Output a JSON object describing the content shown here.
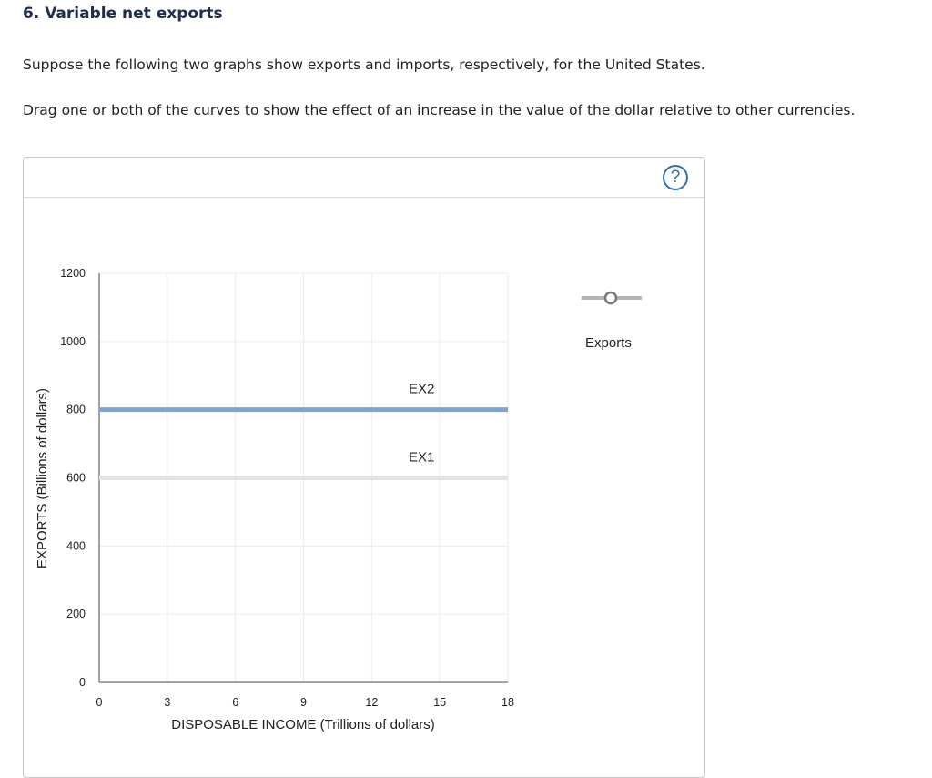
{
  "question": {
    "title": "6. Variable net exports",
    "instruction_1": "Suppose the following two graphs show exports and imports, respectively, for the United States.",
    "instruction_2": "Drag one or both of the curves to show the effect of an increase in the value of the dollar relative to other currencies."
  },
  "panel": {
    "help_label": "?",
    "legend_label": "Exports",
    "legend_icon": "line-with-circle-marker"
  },
  "chart_data": {
    "type": "line",
    "xlabel": "DISPOSABLE INCOME (Trillions of dollars)",
    "ylabel": "EXPORTS (Billions of dollars)",
    "xlim": [
      0,
      18
    ],
    "ylim": [
      0,
      1200
    ],
    "x_ticks": [
      0,
      3,
      6,
      9,
      12,
      15,
      18
    ],
    "y_ticks": [
      0,
      200,
      400,
      600,
      800,
      1000,
      1200
    ],
    "grid": true,
    "series": [
      {
        "name": "EX1",
        "x": [
          0,
          18
        ],
        "y": [
          600,
          600
        ],
        "color": "#e3e3e3",
        "label_x": 14.2
      },
      {
        "name": "EX2",
        "x": [
          0,
          18
        ],
        "y": [
          800,
          800
        ],
        "color": "#7ea4cf",
        "label_x": 14.2
      }
    ]
  }
}
